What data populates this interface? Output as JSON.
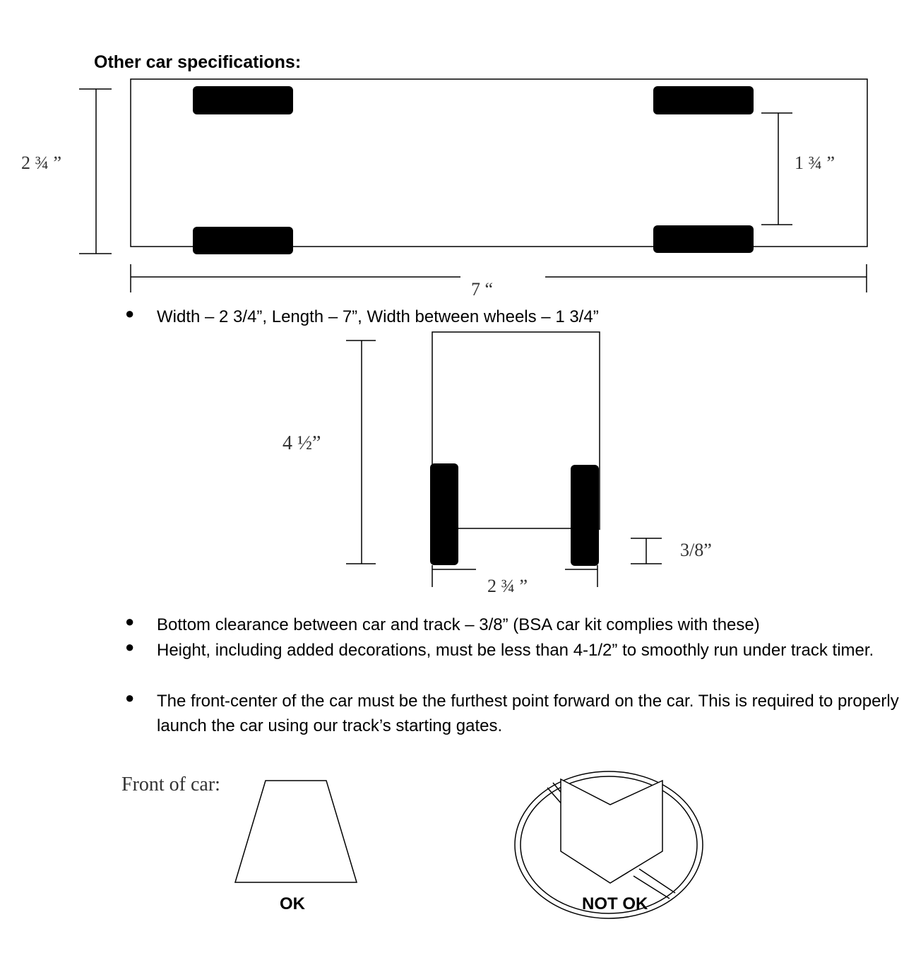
{
  "heading": "Other car specifications:",
  "top_view": {
    "width_label": "2 ¾ ”",
    "wheel_gap_label": "1 ¾ ”",
    "length_label": "7 “"
  },
  "front_view": {
    "height_label": "4 ½”",
    "clearance_label": "3/8”",
    "width_label": "2 ¾ ”"
  },
  "bullets": [
    "Width – 2 3/4”, Length – 7”, Width between wheels – 1 3/4”",
    "Bottom clearance between car and track – 3/8” (BSA car kit complies with these)",
    "Height, including added decorations, must be less than 4-1/2” to smoothly run under track timer.",
    "The front-center of the car must be the furthest point forward on the car.  This is required to properly launch the car using our track’s starting gates."
  ],
  "bullet_symbol": "●",
  "front_shapes": {
    "caption": "Front of car:",
    "ok_label": "OK",
    "not_ok_label": "NOT OK"
  }
}
